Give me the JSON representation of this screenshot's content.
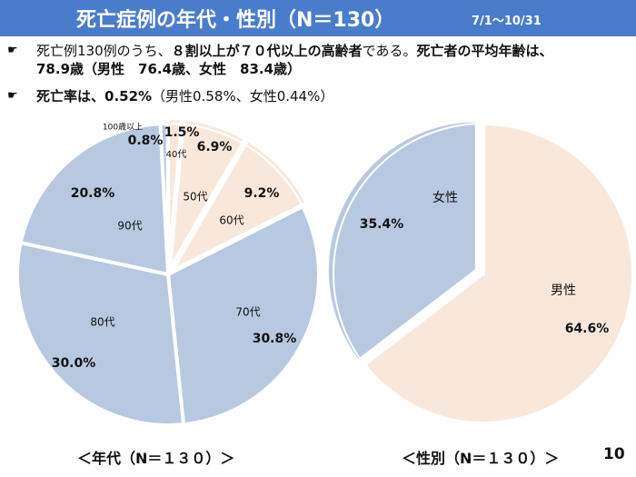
{
  "slide": {
    "title": "死亡症例の年代・性別（N＝130）",
    "period": "7/1～10/31",
    "page_number": "10"
  },
  "bullets": {
    "mark": "☛",
    "line1_a": "死亡例130例のうち、",
    "line1_b": "８割以上が７０代以上の高齢者",
    "line1_c": "である。",
    "line1_d": "死亡者の平均年齢は、",
    "line1_e": "78.9歳（男性　76.4歳、女性　83.4歳）",
    "line2_a": "死亡率は、0.52%",
    "line2_b": "（男性0.58%、女性0.44%）"
  },
  "footer": {
    "age_caption": "＜年代（N＝１３０）＞",
    "sex_caption": "＜性別（N＝１３０）＞"
  },
  "colors": {
    "header": "#4a7ccc",
    "young": "#f8e8dc",
    "old": "#b8c8e0",
    "male": "#f8e8dc",
    "female": "#b8c8e0"
  },
  "chart_data": [
    {
      "type": "pie",
      "title": "",
      "slices": [
        {
          "category": "100歳以上",
          "value": 0.8,
          "value_label": "0.8%",
          "fill": "old"
        },
        {
          "category": "40代",
          "value": 1.5,
          "value_label": "1.5%",
          "fill": "young"
        },
        {
          "category": "50代",
          "value": 6.9,
          "value_label": "6.9%",
          "fill": "young"
        },
        {
          "category": "60代",
          "value": 9.2,
          "value_label": "9.2%",
          "fill": "young"
        },
        {
          "category": "70代",
          "value": 30.8,
          "value_label": "30.8%",
          "fill": "old"
        },
        {
          "category": "80代",
          "value": 30.0,
          "value_label": "30.0%",
          "fill": "old"
        },
        {
          "category": "90代",
          "value": 20.8,
          "value_label": "20.8%",
          "fill": "old"
        }
      ]
    },
    {
      "type": "pie",
      "title": "",
      "slices": [
        {
          "category": "男性",
          "value": 64.6,
          "value_label": "64.6%",
          "fill": "male"
        },
        {
          "category": "女性",
          "value": 35.4,
          "value_label": "35.4%",
          "fill": "female"
        }
      ]
    }
  ]
}
